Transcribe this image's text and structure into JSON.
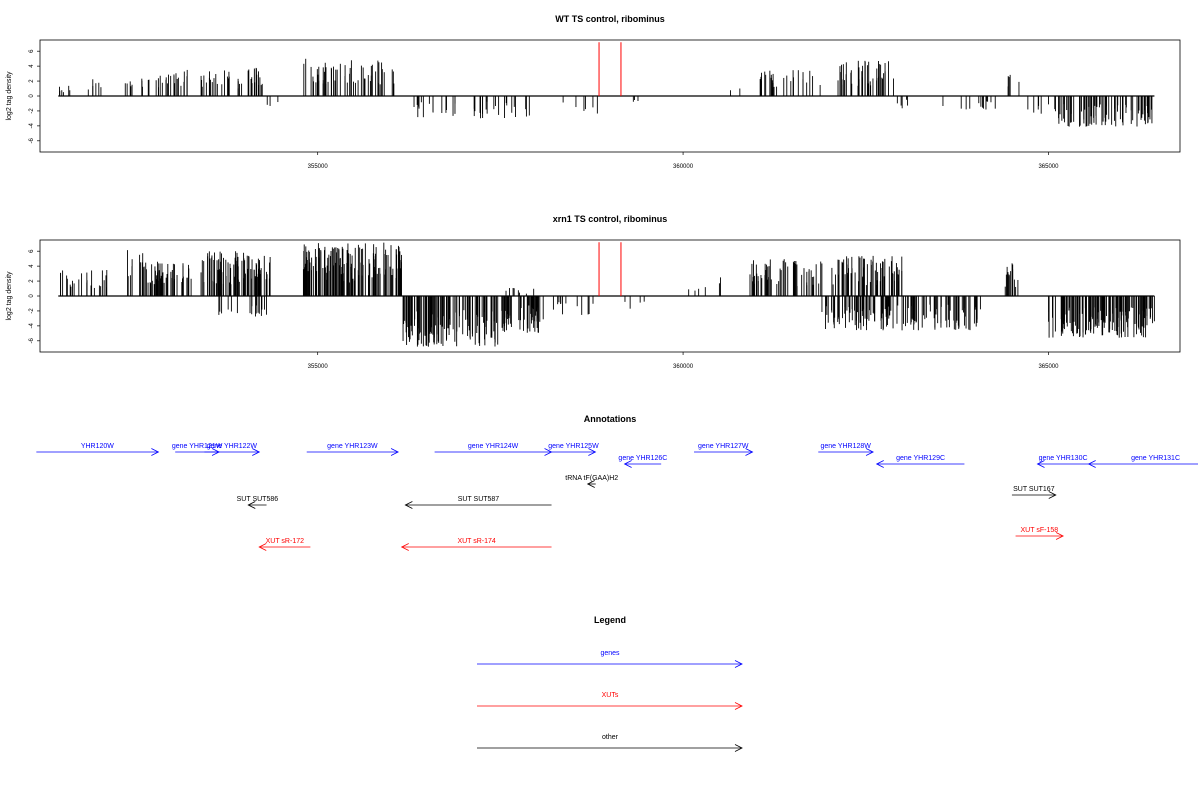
{
  "chart_data": [
    {
      "type": "bar",
      "title": "WT TS control, ribominus",
      "ylabel": "log2 tag density",
      "xlabel": "",
      "xlim": [
        351200,
        366800
      ],
      "ylim": [
        -7.5,
        7.5
      ],
      "yticks": [
        -6,
        -4,
        -2,
        0,
        2,
        4,
        6
      ],
      "xticks": [
        355000,
        360000,
        365000
      ],
      "xtick_labels": [
        "355000",
        "360000",
        "365000"
      ],
      "marker_lines": [
        358850,
        359150
      ],
      "marker_color": "#ff0000",
      "bar_color": "#000000",
      "segments": [
        {
          "x0": 351450,
          "x1": 351650,
          "n": 6,
          "hi": 1.5,
          "sign": 1,
          "seed": 11
        },
        {
          "x0": 351850,
          "x1": 352150,
          "n": 6,
          "hi": 2.3,
          "sign": 1,
          "seed": 12
        },
        {
          "x0": 352350,
          "x1": 352700,
          "n": 10,
          "hi": 3.0,
          "sign": 1,
          "seed": 13
        },
        {
          "x0": 352700,
          "x1": 353300,
          "n": 22,
          "hi": 3.8,
          "sign": 1,
          "seed": 14
        },
        {
          "x0": 353400,
          "x1": 354250,
          "n": 40,
          "hi": 3.8,
          "sign": 1,
          "seed": 15
        },
        {
          "x0": 354300,
          "x1": 354500,
          "n": 3,
          "hi": 1.6,
          "sign": -1,
          "seed": 16
        },
        {
          "x0": 354800,
          "x1": 356050,
          "n": 55,
          "hi": 5.0,
          "sign": 1,
          "seed": 17
        },
        {
          "x0": 356300,
          "x1": 356900,
          "n": 16,
          "hi": 3.0,
          "sign": -1,
          "seed": 18
        },
        {
          "x0": 357100,
          "x1": 358000,
          "n": 22,
          "hi": 3.0,
          "sign": -1,
          "seed": 19
        },
        {
          "x0": 358200,
          "x1": 358850,
          "n": 6,
          "hi": 2.4,
          "sign": -1,
          "seed": 20
        },
        {
          "x0": 359250,
          "x1": 359600,
          "n": 3,
          "hi": 1.2,
          "sign": -1,
          "seed": 21
        },
        {
          "x0": 360600,
          "x1": 360800,
          "n": 2,
          "hi": 1.5,
          "sign": 1,
          "seed": 22
        },
        {
          "x0": 361000,
          "x1": 361900,
          "n": 28,
          "hi": 3.6,
          "sign": 1,
          "seed": 23
        },
        {
          "x0": 362100,
          "x1": 362900,
          "n": 45,
          "hi": 4.8,
          "sign": 1,
          "seed": 24
        },
        {
          "x0": 362900,
          "x1": 363600,
          "n": 6,
          "hi": 1.8,
          "sign": -1,
          "seed": 25
        },
        {
          "x0": 363800,
          "x1": 364300,
          "n": 12,
          "hi": 2.2,
          "sign": -1,
          "seed": 26
        },
        {
          "x0": 364400,
          "x1": 364600,
          "n": 5,
          "hi": 3.2,
          "sign": 1,
          "seed": 27
        },
        {
          "x0": 364700,
          "x1": 365100,
          "n": 8,
          "hi": 2.5,
          "sign": -1,
          "seed": 28
        },
        {
          "x0": 365100,
          "x1": 366450,
          "n": 80,
          "hi": 4.2,
          "sign": -1,
          "seed": 29
        }
      ]
    },
    {
      "type": "bar",
      "title": "xrn1 TS control, ribominus",
      "ylabel": "log2 tag density",
      "xlabel": "",
      "xlim": [
        351200,
        366800
      ],
      "ylim": [
        -7.5,
        7.5
      ],
      "yticks": [
        -6,
        -4,
        -2,
        0,
        2,
        4,
        6
      ],
      "xticks": [
        355000,
        360000,
        365000
      ],
      "xtick_labels": [
        "355000",
        "360000",
        "365000"
      ],
      "marker_lines": [
        358850,
        359150
      ],
      "marker_color": "#ff0000",
      "bar_color": "#000000",
      "segments": [
        {
          "x0": 351450,
          "x1": 352150,
          "n": 24,
          "hi": 3.5,
          "sign": 1,
          "seed": 31
        },
        {
          "x0": 352350,
          "x1": 352700,
          "n": 14,
          "hi": 6.3,
          "sign": 1,
          "seed": 32
        },
        {
          "x0": 352700,
          "x1": 353300,
          "n": 45,
          "hi": 4.6,
          "sign": 1,
          "seed": 33
        },
        {
          "x0": 353400,
          "x1": 354350,
          "n": 90,
          "hi": 6.0,
          "sign": 1,
          "seed": 34
        },
        {
          "x0": 353600,
          "x1": 354300,
          "n": 18,
          "hi": 2.8,
          "sign": -1,
          "seed": 35
        },
        {
          "x0": 354800,
          "x1": 356150,
          "n": 130,
          "hi": 7.2,
          "sign": 1,
          "seed": 36
        },
        {
          "x0": 356150,
          "x1": 357500,
          "n": 120,
          "hi": 6.8,
          "sign": -1,
          "seed": 37
        },
        {
          "x0": 357500,
          "x1": 358100,
          "n": 50,
          "hi": 5.0,
          "sign": -1,
          "seed": 38
        },
        {
          "x0": 357500,
          "x1": 358000,
          "n": 8,
          "hi": 1.2,
          "sign": 1,
          "seed": 39
        },
        {
          "x0": 358200,
          "x1": 358800,
          "n": 12,
          "hi": 2.6,
          "sign": -1,
          "seed": 40
        },
        {
          "x0": 359200,
          "x1": 359500,
          "n": 4,
          "hi": 1.7,
          "sign": -1,
          "seed": 41
        },
        {
          "x0": 359900,
          "x1": 360600,
          "n": 6,
          "hi": 2.5,
          "sign": 1,
          "seed": 42
        },
        {
          "x0": 360900,
          "x1": 361900,
          "n": 55,
          "hi": 5.0,
          "sign": 1,
          "seed": 43
        },
        {
          "x0": 362000,
          "x1": 363000,
          "n": 70,
          "hi": 5.4,
          "sign": 1,
          "seed": 44
        },
        {
          "x0": 361900,
          "x1": 364100,
          "n": 140,
          "hi": 4.6,
          "sign": -1,
          "seed": 45
        },
        {
          "x0": 364400,
          "x1": 364600,
          "n": 14,
          "hi": 4.5,
          "sign": 1,
          "seed": 46
        },
        {
          "x0": 365000,
          "x1": 366450,
          "n": 150,
          "hi": 5.6,
          "sign": -1,
          "seed": 47
        }
      ]
    }
  ],
  "annotations": {
    "title": "Annotations",
    "xlim": [
      351200,
      366800
    ],
    "features": [
      {
        "label": "YHR120W",
        "x0": 351150,
        "x1": 352820,
        "dir": 1,
        "row": 0,
        "cls": "gene"
      },
      {
        "label": "gene YHR121W",
        "x0": 353050,
        "x1": 353650,
        "dir": 1,
        "row": 0,
        "cls": "gene"
      },
      {
        "label": "gene YHR122W",
        "x0": 353450,
        "x1": 354200,
        "dir": 1,
        "row": 0,
        "cls": "gene"
      },
      {
        "label": "gene YHR123W",
        "x0": 354850,
        "x1": 356100,
        "dir": 1,
        "row": 0,
        "cls": "gene"
      },
      {
        "label": "gene YHR124W",
        "x0": 356600,
        "x1": 358200,
        "dir": 1,
        "row": 0,
        "cls": "gene"
      },
      {
        "label": "gene YHR125W",
        "x0": 358200,
        "x1": 358800,
        "dir": 1,
        "row": 0,
        "cls": "gene"
      },
      {
        "label": "gene YHR126C",
        "x0": 359200,
        "x1": 359700,
        "dir": -1,
        "row": 1,
        "cls": "gene"
      },
      {
        "label": "gene YHR127W",
        "x0": 360150,
        "x1": 360950,
        "dir": 1,
        "row": 0,
        "cls": "gene"
      },
      {
        "label": "gene YHR128W",
        "x0": 361850,
        "x1": 362600,
        "dir": 1,
        "row": 0,
        "cls": "gene"
      },
      {
        "label": "gene YHR129C",
        "x0": 362650,
        "x1": 363850,
        "dir": -1,
        "row": 1,
        "cls": "gene"
      },
      {
        "label": "gene YHR130C",
        "x0": 364850,
        "x1": 365550,
        "dir": -1,
        "row": 1,
        "cls": "gene"
      },
      {
        "label": "gene YHR131C",
        "x0": 365550,
        "x1": 367200,
        "dir": -1,
        "row": 1,
        "cls": "gene"
      },
      {
        "label": "tRNA tF(GAA)H2",
        "x0": 358700,
        "x1": 358800,
        "dir": -1,
        "row": 2,
        "cls": "other"
      },
      {
        "label": "SUT SUT586",
        "x0": 354050,
        "x1": 354300,
        "dir": -1,
        "row": 3,
        "cls": "other"
      },
      {
        "label": "SUT SUT587",
        "x0": 356200,
        "x1": 358200,
        "dir": -1,
        "row": 3,
        "cls": "other"
      },
      {
        "label": "SUT SUT167",
        "x0": 364500,
        "x1": 365100,
        "dir": 1,
        "row": 4,
        "cls": "other"
      },
      {
        "label": "XUT sR-172",
        "x0": 354200,
        "x1": 354900,
        "dir": -1,
        "row": 5,
        "cls": "xut"
      },
      {
        "label": "XUT sR-174",
        "x0": 356150,
        "x1": 358200,
        "dir": -1,
        "row": 5,
        "cls": "xut"
      },
      {
        "label": "XUT sF-158",
        "x0": 364550,
        "x1": 365200,
        "dir": 1,
        "row": 6,
        "cls": "xut"
      }
    ]
  },
  "legend": {
    "title": "Legend",
    "items": [
      {
        "label": "genes",
        "color": "#0000ff"
      },
      {
        "label": "XUTs",
        "color": "#ff0000"
      },
      {
        "label": "other",
        "color": "#000000"
      }
    ]
  },
  "colors": {
    "gene": "#0000ff",
    "xut": "#ff0000",
    "other": "#000000"
  }
}
